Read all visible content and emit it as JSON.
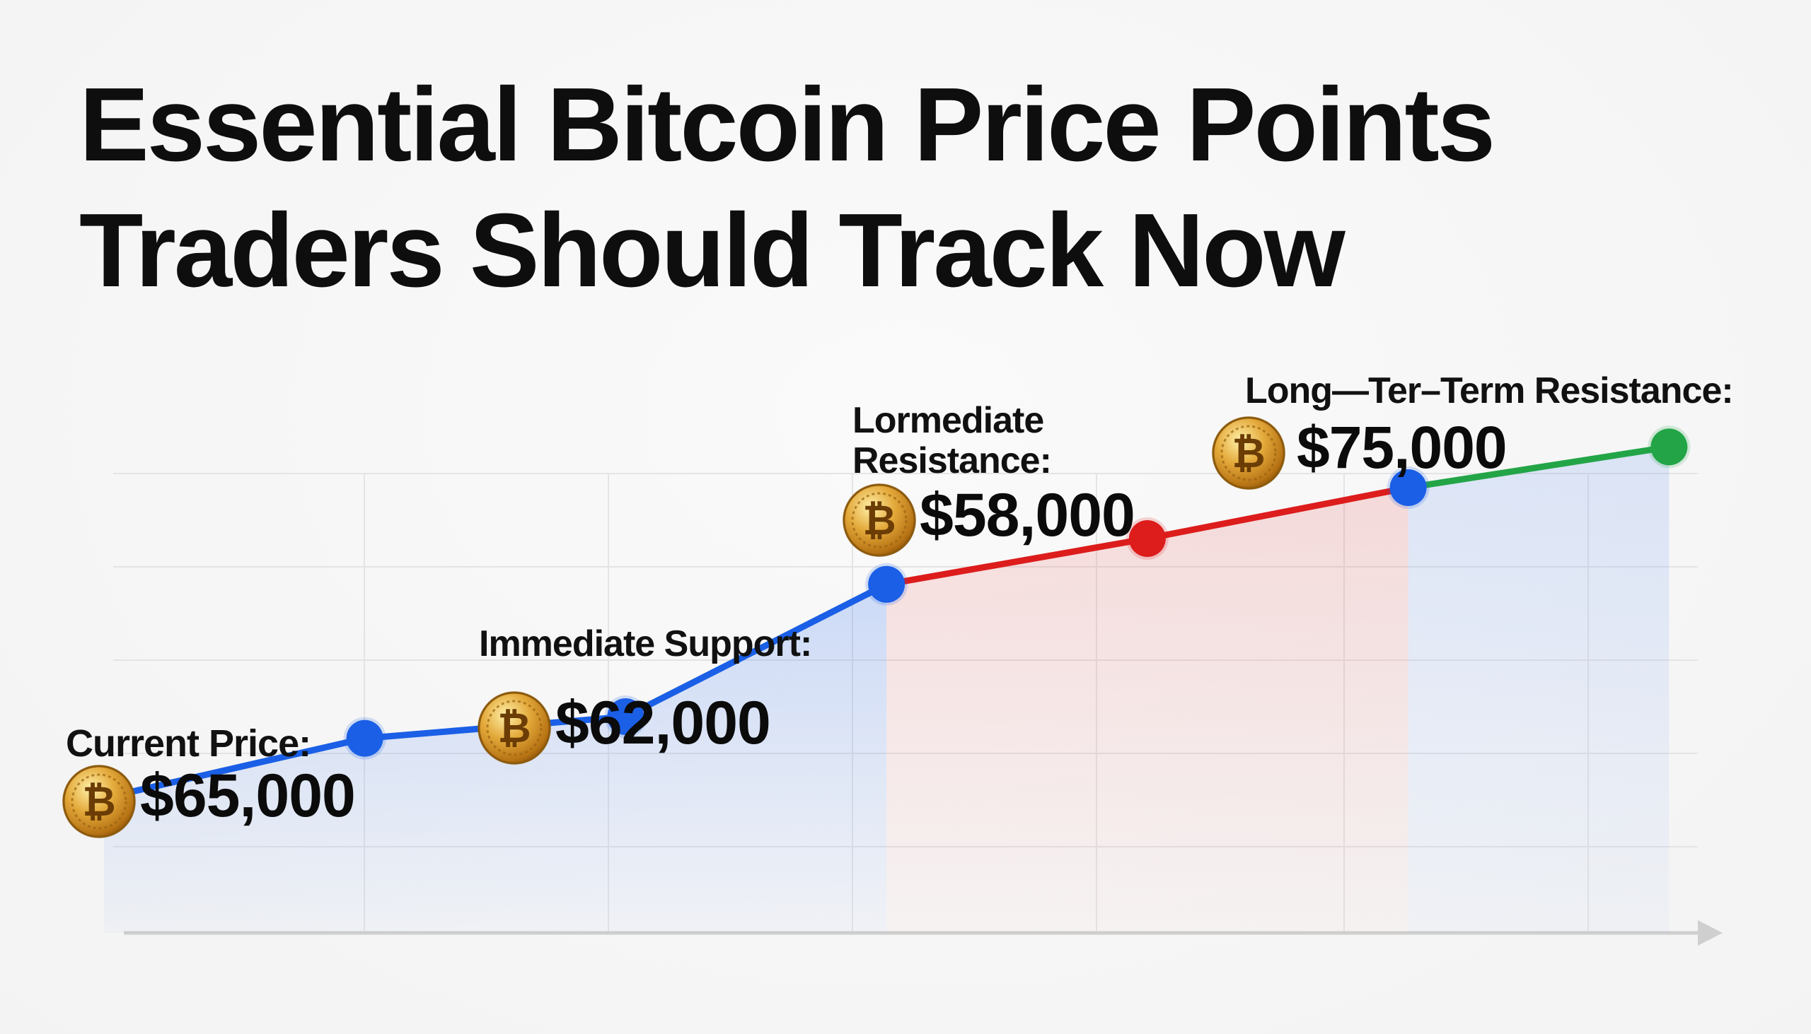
{
  "title_lines": [
    "Essential Bitcoin Price Points",
    "Traders Should Track Now"
  ],
  "coin_icon": "bitcoin-coin-icon",
  "coin_symbol": "₿",
  "colors": {
    "blue": "#1a5fe6",
    "red": "#dd1c1c",
    "green": "#23a547",
    "grid": "#e4e4e4",
    "axis": "#cfcfcf",
    "text": "#111111"
  },
  "chart_data": {
    "type": "line",
    "x": [
      1,
      2,
      3,
      4,
      5,
      6,
      7
    ],
    "values": [
      50.6,
      55.3,
      57.0,
      67.4,
      71.0,
      75.0,
      78.2
    ],
    "point_colors": [
      "green",
      "blue",
      "blue",
      "blue",
      "red",
      "blue",
      "green"
    ],
    "segment_colors": [
      "blue",
      "blue",
      "blue",
      "red",
      "red",
      "green"
    ],
    "xlim": [
      0.9,
      7.3
    ],
    "ylim": [
      40,
      90
    ],
    "grid": true,
    "x_axis_arrow": true,
    "annotations": [
      {
        "label_lines": [
          "Current Price:"
        ],
        "price": "$65,000"
      },
      {
        "label_lines": [
          "Immediate Support:"
        ],
        "price": "$62,000"
      },
      {
        "label_lines": [
          "Lormediate",
          "Resistance:"
        ],
        "price": "$58,000"
      },
      {
        "label_lines": [
          "Long—Ter–Term Resistance:"
        ],
        "price": "$75,000"
      }
    ]
  }
}
